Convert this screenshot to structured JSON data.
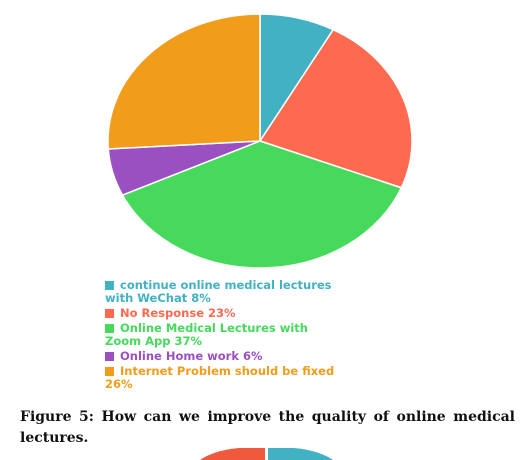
{
  "chart_data": {
    "type": "pie",
    "title": "",
    "categories": [
      "continue online medical lectures with WeChat 8%",
      "No Response 23%",
      "Online Medical Lectures with Zoom App 37%",
      "Online Home work 6%",
      "Internet Problem should be fixed 26%"
    ],
    "values": [
      8,
      23,
      37,
      6,
      26
    ],
    "colors": [
      "#42b1c4",
      "#fe6a50",
      "#46d95c",
      "#9b50c2",
      "#f19c1a"
    ],
    "start_angle_deg": 0,
    "direction": "clockwise",
    "legend_position": "bottom"
  },
  "legend": [
    {
      "label": "continue online medical lectures with WeChat 8%",
      "color": "#42b1c4"
    },
    {
      "label": "No Response 23%",
      "color": "#fe6a50"
    },
    {
      "label": "Online Medical Lectures with Zoom App 37%",
      "color": "#46d95c"
    },
    {
      "label": "Online Home work 6%",
      "color": "#9b50c2"
    },
    {
      "label": "Internet Problem should be fixed 26%",
      "color": "#f19c1a"
    }
  ],
  "caption": "Figure 5: How can we improve the quality of online medical lectures."
}
